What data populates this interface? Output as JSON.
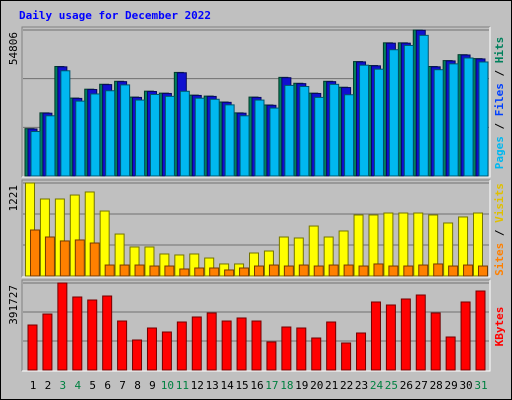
{
  "chart_data": {
    "type": "bar",
    "title": "Daily usage for December 2022",
    "categories": [
      "1",
      "2",
      "3",
      "4",
      "5",
      "6",
      "7",
      "8",
      "9",
      "10",
      "11",
      "12",
      "13",
      "14",
      "15",
      "16",
      "17",
      "18",
      "19",
      "20",
      "21",
      "22",
      "23",
      "24",
      "25",
      "26",
      "27",
      "28",
      "29",
      "30",
      "31"
    ],
    "category_colors": [
      "#000000",
      "#000000",
      "#008040",
      "#008040",
      "#000000",
      "#000000",
      "#000000",
      "#000000",
      "#000000",
      "#008040",
      "#008040",
      "#000000",
      "#000000",
      "#000000",
      "#000000",
      "#000000",
      "#008040",
      "#008040",
      "#000000",
      "#000000",
      "#000000",
      "#000000",
      "#000000",
      "#008040",
      "#008040",
      "#000000",
      "#000000",
      "#000000",
      "#000000",
      "#000000",
      "#008040"
    ],
    "panels": [
      {
        "ylim": [
          0,
          54806
        ],
        "yticks": [
          54806
        ],
        "gridlines": [
          18268.67,
          36537.33
        ],
        "bar_shift": 3,
        "legend_separator": " / ",
        "series": [
          {
            "name": "Hits",
            "color": "#00805c",
            "legend_color": "#00805c",
            "values": [
              17775,
              23700,
              41103,
              29254,
              32587,
              34438,
              35549,
              29624,
              31846,
              31106,
              38882,
              30365,
              29995,
              27773,
              23700,
              29624,
              26662,
              37031,
              34809,
              31106,
              35549,
              33327,
              42956,
              41474,
              49991,
              49991,
              54806,
              41103,
              43326,
              45548,
              44067
            ]
          },
          {
            "name": "Files",
            "color": "#1010d0",
            "legend_color": "#0040ff",
            "values": [
              17650,
              23580,
              40980,
              29130,
              32460,
              34310,
              35420,
              29500,
              31720,
              30980,
              38750,
              30240,
              29870,
              27650,
              23580,
              29500,
              26540,
              36900,
              34680,
              30980,
              35420,
              33200,
              42830,
              41350,
              49860,
              49860,
              54680,
              40980,
              43200,
              45420,
              43940
            ]
          },
          {
            "name": "Pages",
            "color": "#00b8f0",
            "legend_color": "#00b8f0",
            "values": [
              16700,
              22600,
              39500,
              28100,
              30800,
              32000,
              34200,
              28500,
              30600,
              29900,
              31800,
              29200,
              28800,
              26700,
              22600,
              28500,
              25500,
              34000,
              33600,
              29500,
              34400,
              30500,
              41600,
              40100,
              47400,
              49000,
              52800,
              39900,
              42100,
              44300,
              42800
            ]
          }
        ]
      },
      {
        "ylim": [
          0,
          1221
        ],
        "yticks": [
          1221
        ],
        "gridlines": [
          407,
          814
        ],
        "bar_shift": 5,
        "legend_separator": " / ",
        "series": [
          {
            "name": "Visits",
            "color": "#ffff00",
            "legend_color": "#e0c000",
            "values": [
              1221,
              1011,
              1011,
              1063,
              1103,
              853,
              551,
              381,
              381,
              289,
              276,
              289,
              236,
              158,
              158,
              302,
              328,
              512,
              499,
              656,
              512,
              591,
              801,
              801,
              827,
              827,
              827,
              801,
              696,
              775,
              827
            ]
          },
          {
            "name": "Sites",
            "color": "#ff8000",
            "legend_color": "#ff8000",
            "values": [
              604,
              512,
              460,
              473,
              433,
              144,
              144,
              144,
              131,
              131,
              92,
              105,
              105,
              79,
              105,
              131,
              144,
              131,
              144,
              131,
              144,
              144,
              131,
              158,
              131,
              131,
              144,
              158,
              131,
              144,
              131
            ]
          }
        ]
      },
      {
        "ylim": [
          0,
          391727
        ],
        "yticks": [
          391727
        ],
        "gridlines": [
          130575.67,
          261151.33
        ],
        "bar_shift": 0,
        "legend_separator": " / ",
        "series": [
          {
            "name": "KBytes",
            "color": "#ff0000",
            "legend_color": "#ff0000",
            "values": [
              202600,
              252000,
              391727,
              328700,
              315200,
              333200,
              220600,
              135100,
              189100,
              171100,
              216100,
              238700,
              256700,
              220600,
              234200,
              220600,
              126100,
              193600,
              189100,
              144100,
              216100,
              121600,
              166600,
              306200,
              292700,
              319700,
              337700,
              256700,
              148600,
              306200,
              355700
            ]
          }
        ]
      }
    ]
  }
}
